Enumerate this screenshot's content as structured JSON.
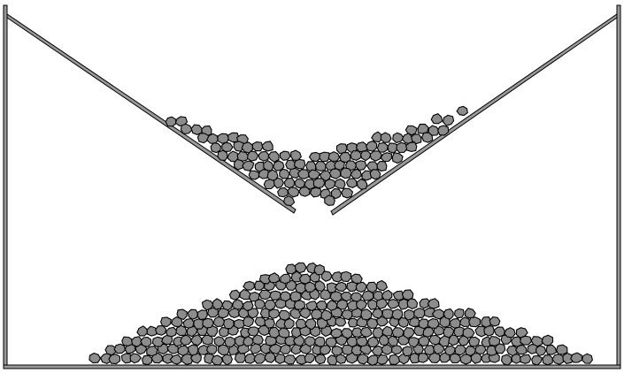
{
  "scene": {
    "description_free": true,
    "colors": {
      "background": "#ffffff",
      "wall_fill": "#9a9a9a",
      "wall_stroke": "#000000",
      "pebble_fill": "#8c8c8c",
      "pebble_stroke": "#000000"
    },
    "elements": {
      "container": "box-walls",
      "hopper": "v-funnel-with-center-gap",
      "upper_pile": "granular-material-in-funnel",
      "lower_pile": "granular-heap-on-floor"
    }
  }
}
